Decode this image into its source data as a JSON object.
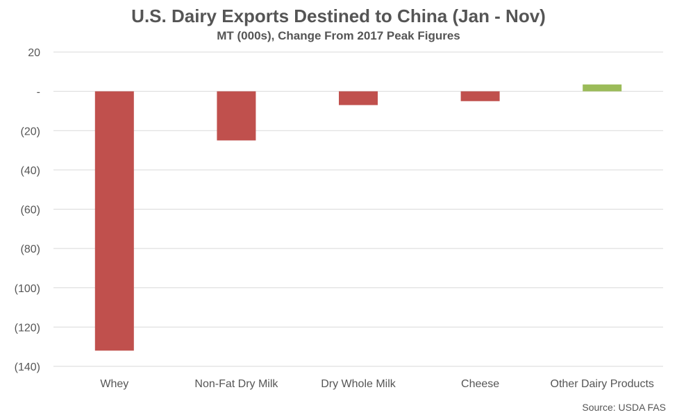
{
  "chart_data": {
    "type": "bar",
    "title": "U.S. Dairy Exports Destined to China (Jan - Nov)",
    "subtitle": "MT (000s), Change From 2017 Peak Figures",
    "source": "Source: USDA FAS",
    "categories": [
      "Whey",
      "Non-Fat Dry Milk",
      "Dry Whole Milk",
      "Cheese",
      "Other Dairy Products"
    ],
    "values": [
      -132,
      -25,
      -7,
      -5,
      3.5
    ],
    "ylim": [
      -140,
      20
    ],
    "yticks": [
      20,
      0,
      -20,
      -40,
      -60,
      -80,
      -100,
      -120,
      -140
    ],
    "ytick_labels": [
      "20",
      "-",
      "(20)",
      "(40)",
      "(60)",
      "(80)",
      "(100)",
      "(120)",
      "(140)"
    ],
    "grid": true,
    "colors": {
      "negative": "#c0504d",
      "positive": "#9bbb59",
      "grid": "#d9d9d9",
      "text": "#555555"
    }
  }
}
